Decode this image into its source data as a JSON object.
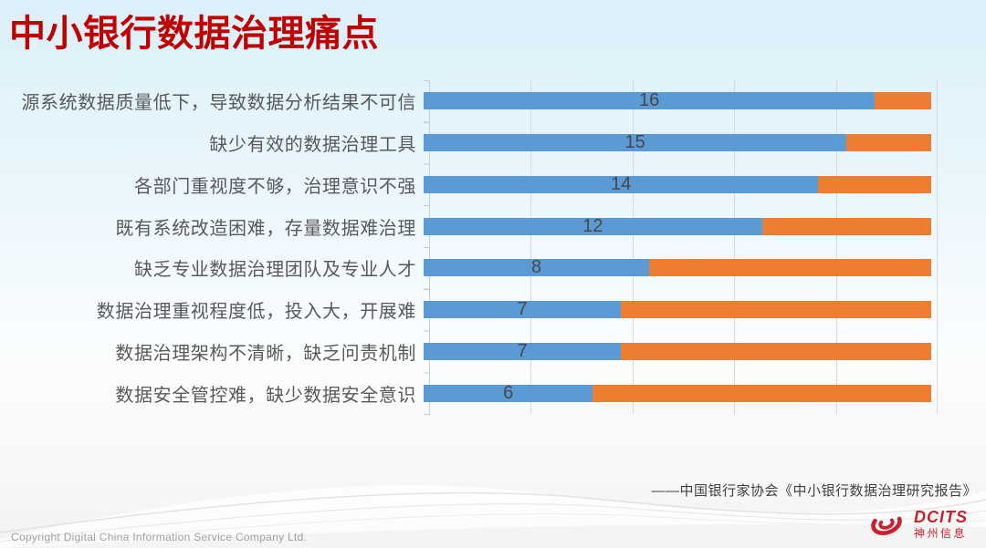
{
  "slide": {
    "title": "中小银行数据治理痛点",
    "source_note": "——中国银行家协会《中小银行数据治理研究报告》",
    "footer_copyright": "Copyright  Digital China Information Service Company Ltd.",
    "logo_text": "DCITS",
    "logo_subtext": "神州信息"
  },
  "chart_data": {
    "type": "bar",
    "orientation": "horizontal",
    "stacked": true,
    "title": "",
    "xlabel": "",
    "ylabel": "",
    "categories": [
      "源系统数据质量低下，导致数据分析结果不可信",
      "缺少有效的数据治理工具",
      "各部门重视度不够，治理意识不强",
      "既有系统改造困难，存量数据难治理",
      "缺乏专业数据治理团队及专业人才",
      "数据治理重视程度低，投入大，开展难",
      "数据治理架构不清晰，缺乏问责机制",
      "数据安全管控难，缺少数据安全意识"
    ],
    "series": [
      {
        "name": "blue",
        "color": "#5b9bd5",
        "values": [
          16,
          15,
          14,
          12,
          8,
          7,
          7,
          6
        ]
      },
      {
        "name": "orange",
        "color": "#ed7d31",
        "values": [
          2,
          3,
          4,
          6,
          10,
          11,
          11,
          12
        ]
      }
    ],
    "data_labels": [
      "16",
      "15",
      "14",
      "12",
      "8",
      "7",
      "7",
      "6"
    ],
    "bar_total": 18,
    "xlim": [
      0,
      18
    ],
    "gridlines": "vertical, 6 lines / 5 equal intervals",
    "legend": "none"
  },
  "colors": {
    "title_red": "#c00000",
    "bar_blue": "#5b9bd5",
    "bar_orange": "#ed7d31",
    "gridline": "#d9d9d9",
    "category_text": "#595959",
    "value_text": "#474747",
    "background_top": "#dbf0f9",
    "logo_red": "#c8202f"
  }
}
